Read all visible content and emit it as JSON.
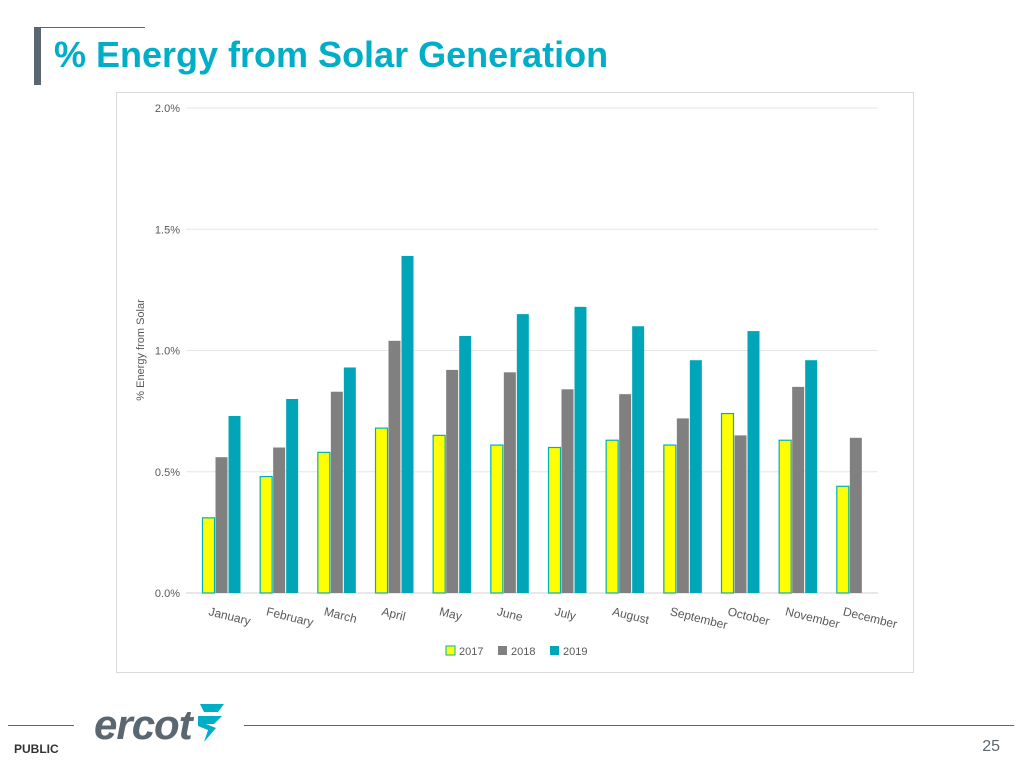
{
  "slide": {
    "title": "% Energy from Solar Generation",
    "footer_label": "PUBLIC",
    "page_number": "25",
    "logo_text": "ercot"
  },
  "colors": {
    "title": "#00aec7",
    "brand_gray": "#5b6770",
    "series_2017": "#ffff00",
    "series_2017_border": "#00b0b8",
    "series_2018": "#808080",
    "series_2019": "#00a6b8"
  },
  "chart_data": {
    "type": "bar",
    "title": "",
    "xlabel": "",
    "ylabel": "% Energy from Solar",
    "ylim": [
      0,
      2.0
    ],
    "yticks": [
      "0.0%",
      "0.5%",
      "1.0%",
      "1.5%",
      "2.0%"
    ],
    "ytick_values": [
      0,
      0.5,
      1.0,
      1.5,
      2.0
    ],
    "grid": true,
    "legend": "bottom",
    "categories": [
      "January",
      "February",
      "March",
      "April",
      "May",
      "June",
      "July",
      "August",
      "September",
      "October",
      "November",
      "December"
    ],
    "series": [
      {
        "name": "2017",
        "values": [
          0.31,
          0.48,
          0.58,
          0.68,
          0.65,
          0.61,
          0.6,
          0.63,
          0.61,
          0.74,
          0.63,
          0.44
        ]
      },
      {
        "name": "2018",
        "values": [
          0.56,
          0.6,
          0.83,
          1.04,
          0.92,
          0.91,
          0.84,
          0.82,
          0.72,
          0.65,
          0.85,
          0.64
        ]
      },
      {
        "name": "2019",
        "values": [
          0.73,
          0.8,
          0.93,
          1.39,
          1.06,
          1.15,
          1.18,
          1.1,
          0.96,
          1.08,
          0.96,
          null
        ]
      }
    ]
  }
}
